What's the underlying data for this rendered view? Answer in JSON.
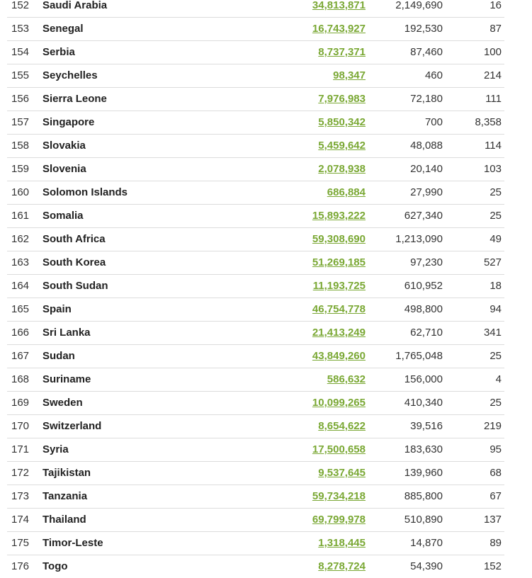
{
  "rows": [
    {
      "rank": "152",
      "country": "Saudi Arabia",
      "population": "34,813,871",
      "area": "2,149,690",
      "density": "16"
    },
    {
      "rank": "153",
      "country": "Senegal",
      "population": "16,743,927",
      "area": "192,530",
      "density": "87"
    },
    {
      "rank": "154",
      "country": "Serbia",
      "population": "8,737,371",
      "area": "87,460",
      "density": "100"
    },
    {
      "rank": "155",
      "country": "Seychelles",
      "population": "98,347",
      "area": "460",
      "density": "214"
    },
    {
      "rank": "156",
      "country": "Sierra Leone",
      "population": "7,976,983",
      "area": "72,180",
      "density": "111"
    },
    {
      "rank": "157",
      "country": "Singapore",
      "population": "5,850,342",
      "area": "700",
      "density": "8,358"
    },
    {
      "rank": "158",
      "country": "Slovakia",
      "population": "5,459,642",
      "area": "48,088",
      "density": "114"
    },
    {
      "rank": "159",
      "country": "Slovenia",
      "population": "2,078,938",
      "area": "20,140",
      "density": "103"
    },
    {
      "rank": "160",
      "country": "Solomon Islands",
      "population": "686,884",
      "area": "27,990",
      "density": "25"
    },
    {
      "rank": "161",
      "country": "Somalia",
      "population": "15,893,222",
      "area": "627,340",
      "density": "25"
    },
    {
      "rank": "162",
      "country": "South Africa",
      "population": "59,308,690",
      "area": "1,213,090",
      "density": "49"
    },
    {
      "rank": "163",
      "country": "South Korea",
      "population": "51,269,185",
      "area": "97,230",
      "density": "527"
    },
    {
      "rank": "164",
      "country": "South Sudan",
      "population": "11,193,725",
      "area": "610,952",
      "density": "18"
    },
    {
      "rank": "165",
      "country": "Spain",
      "population": "46,754,778",
      "area": "498,800",
      "density": "94"
    },
    {
      "rank": "166",
      "country": "Sri Lanka",
      "population": "21,413,249",
      "area": "62,710",
      "density": "341"
    },
    {
      "rank": "167",
      "country": "Sudan",
      "population": "43,849,260",
      "area": "1,765,048",
      "density": "25"
    },
    {
      "rank": "168",
      "country": "Suriname",
      "population": "586,632",
      "area": "156,000",
      "density": "4"
    },
    {
      "rank": "169",
      "country": "Sweden",
      "population": "10,099,265",
      "area": "410,340",
      "density": "25"
    },
    {
      "rank": "170",
      "country": "Switzerland",
      "population": "8,654,622",
      "area": "39,516",
      "density": "219"
    },
    {
      "rank": "171",
      "country": "Syria",
      "population": "17,500,658",
      "area": "183,630",
      "density": "95"
    },
    {
      "rank": "172",
      "country": "Tajikistan",
      "population": "9,537,645",
      "area": "139,960",
      "density": "68"
    },
    {
      "rank": "173",
      "country": "Tanzania",
      "population": "59,734,218",
      "area": "885,800",
      "density": "67"
    },
    {
      "rank": "174",
      "country": "Thailand",
      "population": "69,799,978",
      "area": "510,890",
      "density": "137"
    },
    {
      "rank": "175",
      "country": "Timor-Leste",
      "population": "1,318,445",
      "area": "14,870",
      "density": "89"
    },
    {
      "rank": "176",
      "country": "Togo",
      "population": "8,278,724",
      "area": "54,390",
      "density": "152"
    }
  ],
  "colors": {
    "link": "#7aa834",
    "text": "#333333",
    "divider": "#dcdcdc"
  }
}
